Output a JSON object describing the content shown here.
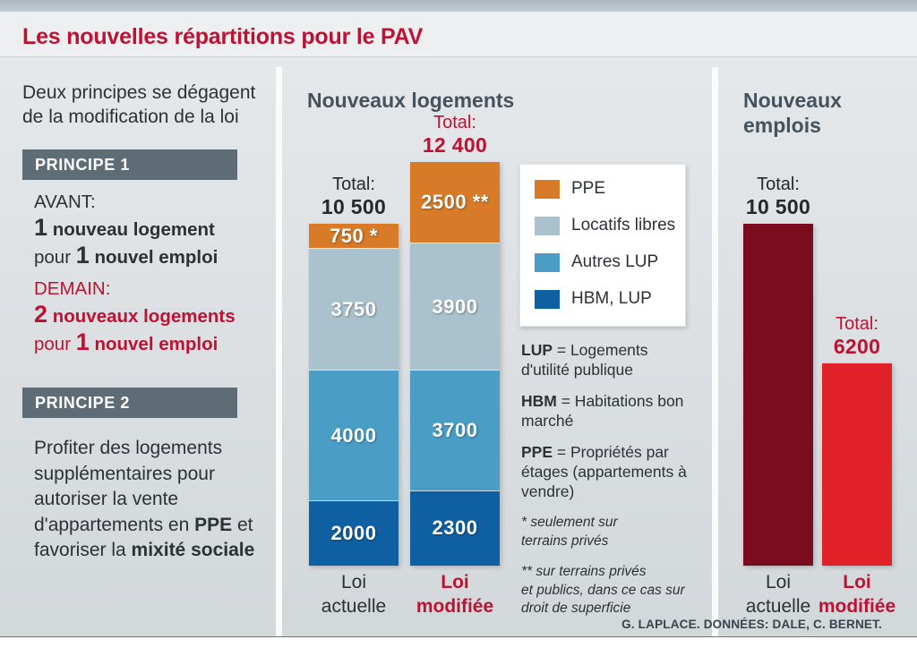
{
  "header": {
    "title": "Les nouvelles répartitions pour le PAV"
  },
  "colors": {
    "accent_red": "#be1233",
    "dark_text": "#2c3136",
    "heading_slate": "#46525c",
    "principle_box": "#5d6c75",
    "maroon_bar": "#7b0c1d",
    "bright_red_bar": "#e02127"
  },
  "left_panel": {
    "intro_line1": "Deux principes se dégagent",
    "intro_line2": "de la modification de la loi",
    "principle1": {
      "title": "PRINCIPE 1",
      "before_label": "AVANT:",
      "before_num1": "1",
      "before_text1": " nouveau logement",
      "before_pre2": "pour ",
      "before_num2": "1",
      "before_text2": " nouvel emploi",
      "after_label": "DEMAIN:",
      "after_num1": "2",
      "after_text1": " nouveaux logements",
      "after_pre2": "pour ",
      "after_num2": "1",
      "after_text2": " nouvel emploi"
    },
    "principle2": {
      "title": "PRINCIPE 2",
      "text_start": "Profiter des logements supplémentaires pour autoriser la vente d'appartements en ",
      "text_bold1": "PPE",
      "text_mid": " et favoriser la ",
      "text_bold2": "mixité sociale"
    }
  },
  "emplois_heading": {
    "line1": "Nouveaux",
    "line2": "emplois"
  },
  "definitions": [
    {
      "abbr": "LUP",
      "rest": " = Logements d'utilité publique"
    },
    {
      "abbr": "HBM",
      "rest": " = Habitations bon marché"
    },
    {
      "abbr": "PPE",
      "rest": " = Propriétés par étages (appartements à vendre)"
    }
  ],
  "footnotes": [
    [
      "* seulement sur",
      "terrains privés"
    ],
    [
      "** sur terrains privés",
      "et publics, dans ce cas sur",
      "droit de superficie"
    ]
  ],
  "footer": {
    "credit": "G. LAPLACE. DONNÉES: DALE, C. BERNET."
  },
  "chart_data": [
    {
      "type": "bar",
      "stacked": true,
      "title": "Nouveaux logements",
      "categories": [
        "Loi actuelle",
        "Loi modifiée"
      ],
      "category_label_lines": [
        [
          "Loi",
          "actuelle"
        ],
        [
          "Loi",
          "modifiée"
        ]
      ],
      "total_label": "Total:",
      "totals": [
        10500,
        12400
      ],
      "totals_display": [
        "10 500",
        "12 400"
      ],
      "series": [
        {
          "name": "PPE",
          "color": "#d87b28",
          "values": [
            750,
            2500
          ],
          "labels": [
            "750 *",
            "2500 **"
          ]
        },
        {
          "name": "Locatifs libres",
          "color": "#a9c2cd",
          "values": [
            3750,
            3900
          ],
          "labels": [
            "3750",
            "3900"
          ]
        },
        {
          "name": "Autres LUP",
          "color": "#4a9ec6",
          "values": [
            4000,
            3700
          ],
          "labels": [
            "4000",
            "3700"
          ]
        },
        {
          "name": "HBM, LUP",
          "color": "#0f60a3",
          "values": [
            2000,
            2300
          ],
          "labels": [
            "2000",
            "2300"
          ]
        }
      ],
      "legend_position": "right of bars",
      "grid": false
    },
    {
      "type": "bar",
      "title": "Nouveaux emplois",
      "categories": [
        "Loi actuelle",
        "Loi modifiée"
      ],
      "category_label_lines": [
        [
          "Loi",
          "actuelle"
        ],
        [
          "Loi",
          "modifiée"
        ]
      ],
      "total_label": "Total:",
      "values": [
        10500,
        6200
      ],
      "values_display": [
        "10 500",
        "6200"
      ],
      "colors": [
        "#7b0c1d",
        "#e02127"
      ],
      "grid": false
    }
  ]
}
